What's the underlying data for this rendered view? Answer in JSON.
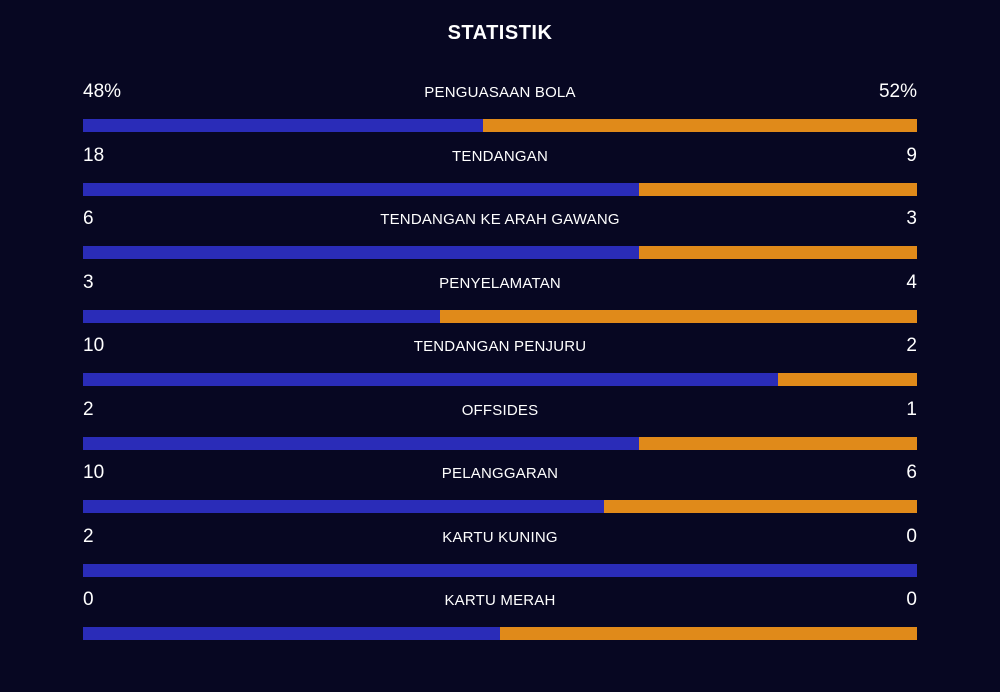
{
  "header": {
    "title": "STATISTIK"
  },
  "colors": {
    "home": "#2a2cb8",
    "away": "#e08a1a",
    "background": "#070722"
  },
  "stats": [
    {
      "label": "PENGUASAAN BOLA",
      "home": "48%",
      "away": "52%",
      "home_share": 0.48
    },
    {
      "label": "TENDANGAN",
      "home": "18",
      "away": "9",
      "home_share": 0.6667
    },
    {
      "label": "TENDANGAN KE ARAH GAWANG",
      "home": "6",
      "away": "3",
      "home_share": 0.6667
    },
    {
      "label": "PENYELAMATAN",
      "home": "3",
      "away": "4",
      "home_share": 0.4286
    },
    {
      "label": "TENDANGAN PENJURU",
      "home": "10",
      "away": "2",
      "home_share": 0.8333
    },
    {
      "label": "OFFSIDES",
      "home": "2",
      "away": "1",
      "home_share": 0.6667
    },
    {
      "label": "PELANGGARAN",
      "home": "10",
      "away": "6",
      "home_share": 0.625
    },
    {
      "label": "KARTU KUNING",
      "home": "2",
      "away": "0",
      "home_share": 1.0
    },
    {
      "label": "KARTU MERAH",
      "home": "0",
      "away": "0",
      "home_share": 0.5
    }
  ]
}
